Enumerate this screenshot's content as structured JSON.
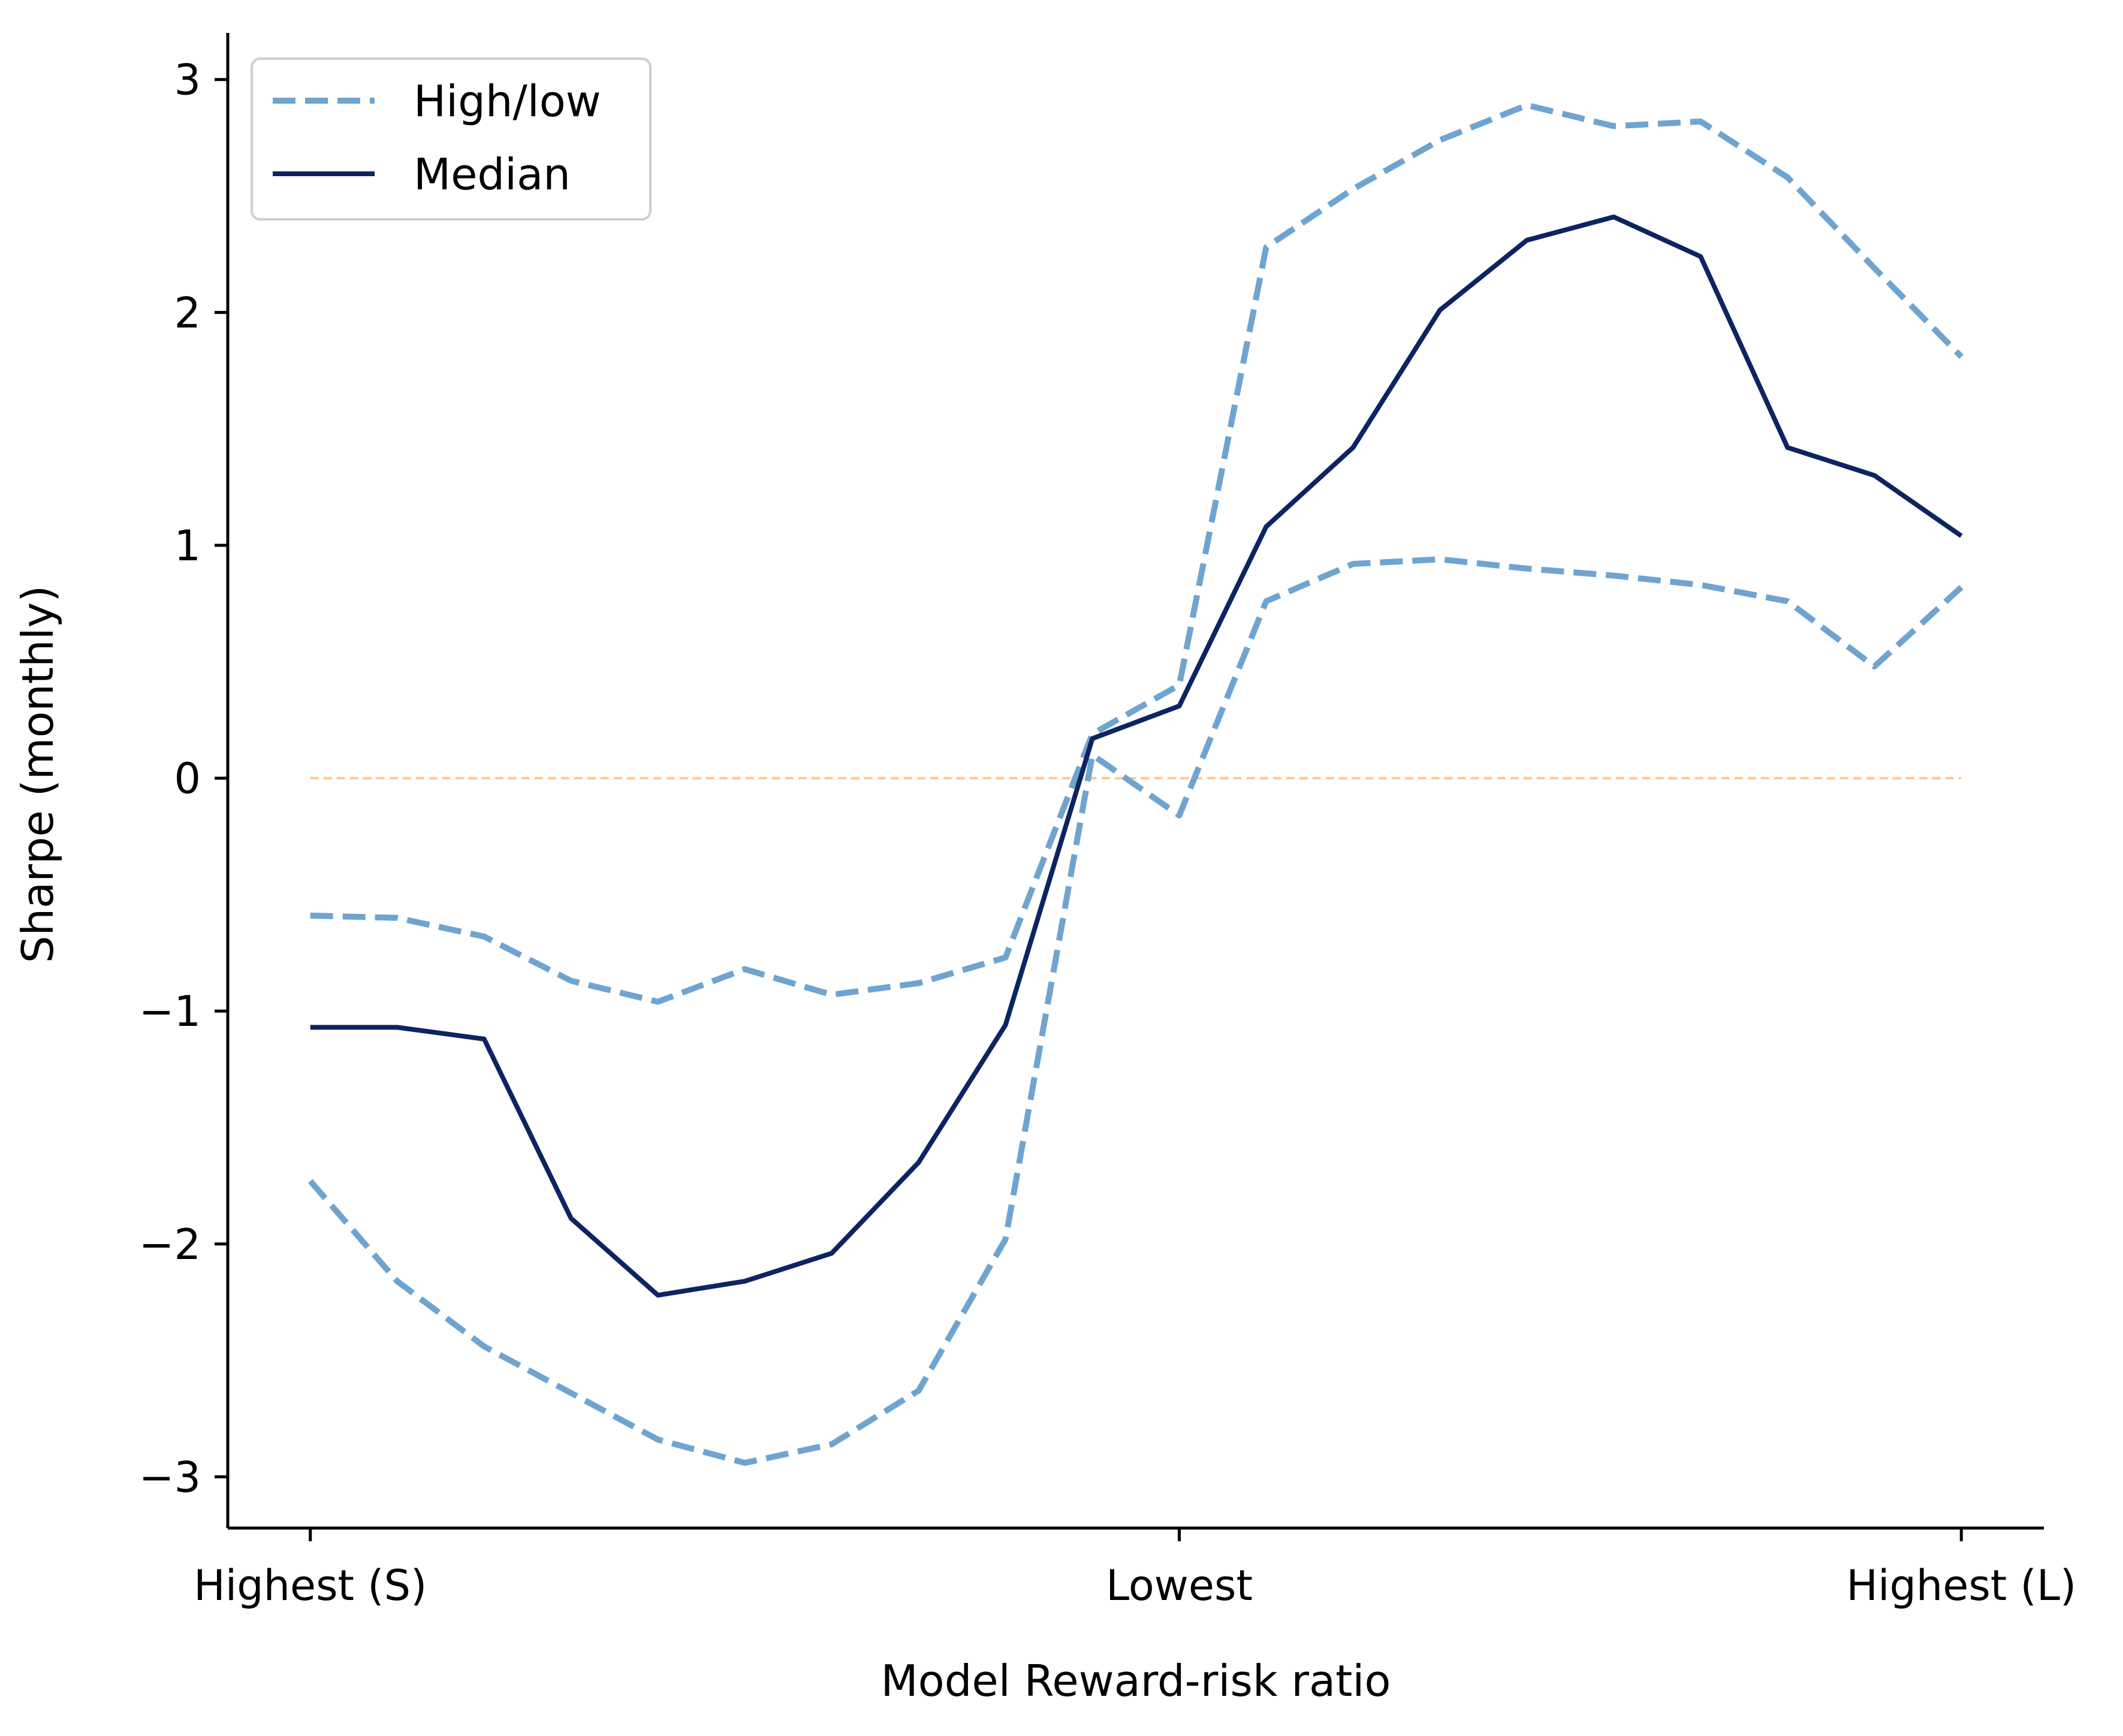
{
  "chart_data": {
    "type": "line",
    "title": "",
    "xlabel": "Model Reward-risk ratio",
    "ylabel": "Sharpe (monthly)",
    "x_tick_labels": [
      "Highest (S)",
      "Lowest",
      "Highest (L)"
    ],
    "x_tick_positions": [
      0,
      10,
      19
    ],
    "x": [
      0,
      1,
      2,
      3,
      4,
      5,
      6,
      7,
      8,
      9,
      10,
      11,
      12,
      13,
      14,
      15,
      16,
      17,
      18,
      19
    ],
    "xlim": [
      -0.95,
      19.95
    ],
    "ylim": [
      -3.22,
      3.2
    ],
    "y_ticks": [
      3,
      2,
      1,
      0,
      -1,
      -2,
      -3
    ],
    "y_tick_labels": [
      "3",
      "2",
      "1",
      "0",
      "−1",
      "−2",
      "−3"
    ],
    "reference_line": {
      "y": 0,
      "color": "#fdc890",
      "style": "dashed"
    },
    "legend": {
      "location": "upper-left",
      "entries": [
        "High/low",
        "Median"
      ]
    },
    "series": [
      {
        "name": "High/low",
        "role": "high",
        "style": "dashed",
        "color": "#6fa4d0",
        "values": [
          -0.59,
          -0.6,
          -0.68,
          -0.87,
          -0.96,
          -0.82,
          -0.93,
          -0.88,
          -0.77,
          0.19,
          0.4,
          2.28,
          2.53,
          2.74,
          2.89,
          2.8,
          2.82,
          2.58,
          2.19,
          1.81
        ]
      },
      {
        "name": "High/low",
        "role": "low",
        "style": "dashed",
        "color": "#6fa4d0",
        "values": [
          -1.73,
          -2.16,
          -2.44,
          -2.64,
          -2.84,
          -2.94,
          -2.86,
          -2.63,
          -1.98,
          0.1,
          -0.16,
          0.76,
          0.92,
          0.94,
          0.9,
          0.87,
          0.83,
          0.76,
          0.48,
          0.82
        ]
      },
      {
        "name": "Median",
        "role": "median",
        "style": "solid",
        "color": "#0c2461",
        "values": [
          -1.07,
          -1.07,
          -1.12,
          -1.89,
          -2.22,
          -2.16,
          -2.04,
          -1.65,
          -1.06,
          0.17,
          0.31,
          1.08,
          1.42,
          2.01,
          2.31,
          2.41,
          2.24,
          1.42,
          1.3,
          1.04
        ]
      }
    ]
  }
}
